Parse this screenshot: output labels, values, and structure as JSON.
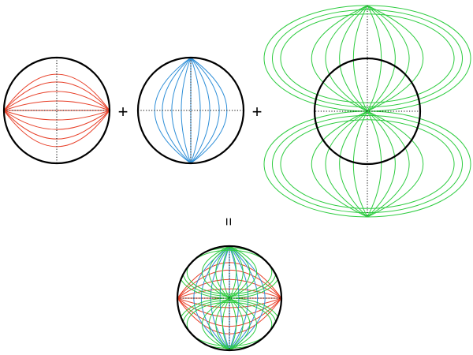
{
  "operators": {
    "plus": "+",
    "equals": "="
  },
  "colors": {
    "outline": "#000000",
    "red_family": "#e8412a",
    "blue_family": "#2f8fd8",
    "green_family": "#2ecc40"
  },
  "figures": [
    {
      "id": "sphere-red-latitudes",
      "families": [
        "red"
      ]
    },
    {
      "id": "sphere-blue-meridians",
      "families": [
        "blue"
      ]
    },
    {
      "id": "sphere-green-lobes",
      "families": [
        "green"
      ]
    },
    {
      "id": "sphere-combined",
      "families": [
        "red",
        "blue",
        "green"
      ]
    }
  ]
}
